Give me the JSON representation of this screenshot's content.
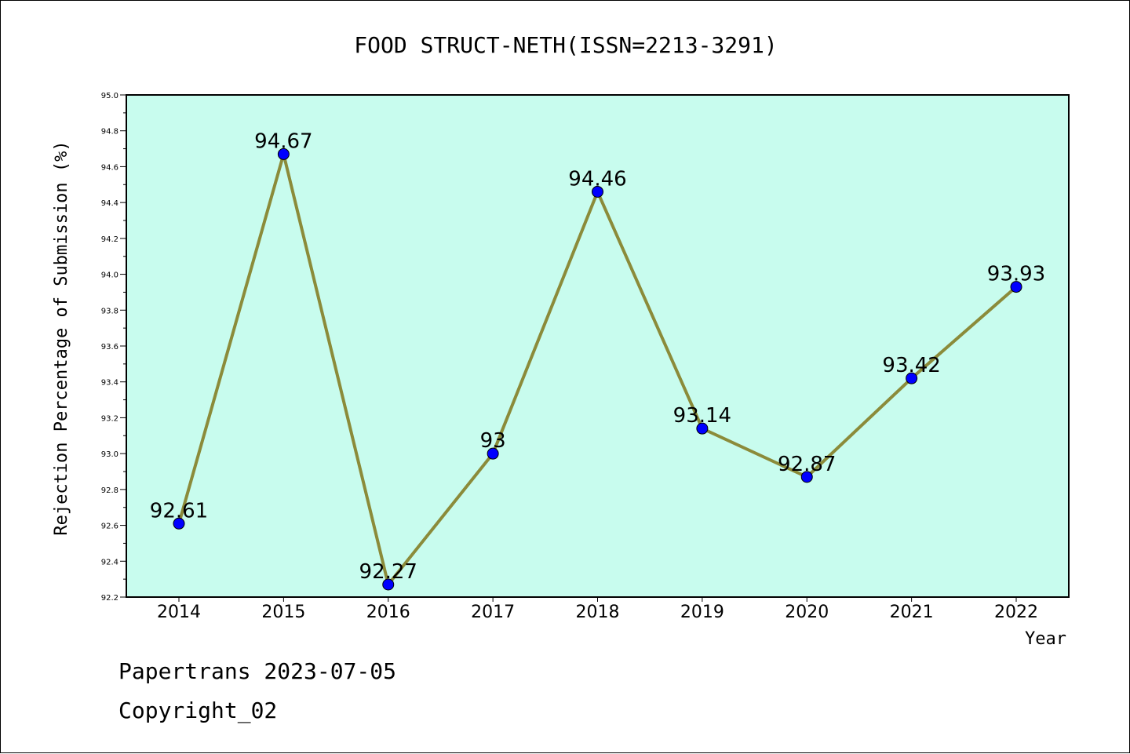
{
  "chart_data": {
    "type": "line",
    "title": "FOOD STRUCT-NETH(ISSN=2213-3291)",
    "xlabel": "Year",
    "ylabel": "Rejection Percentage of Submission (%)",
    "categories": [
      "2014",
      "2015",
      "2016",
      "2017",
      "2018",
      "2019",
      "2020",
      "2021",
      "2022"
    ],
    "values": [
      92.61,
      94.67,
      92.27,
      93,
      94.46,
      93.14,
      92.87,
      93.42,
      93.93
    ],
    "data_labels": [
      "92.61",
      "94.67",
      "92.27",
      "93",
      "94.46",
      "93.14",
      "92.87",
      "93.42",
      "93.93"
    ],
    "ylim": [
      92.2,
      95.0
    ],
    "yticks": [
      "92.2",
      "92.4",
      "92.6",
      "92.8",
      "93.0",
      "93.2",
      "93.4",
      "93.6",
      "93.8",
      "94.0",
      "94.2",
      "94.4",
      "94.6",
      "94.8",
      "95.0"
    ],
    "grid": false,
    "colors": {
      "plot_background": "#c8fcee",
      "line": "#8b8b3a",
      "marker": "#0000ff"
    }
  },
  "footer": {
    "line1": "Papertrans 2023-07-05",
    "line2": "Copyright_02"
  }
}
